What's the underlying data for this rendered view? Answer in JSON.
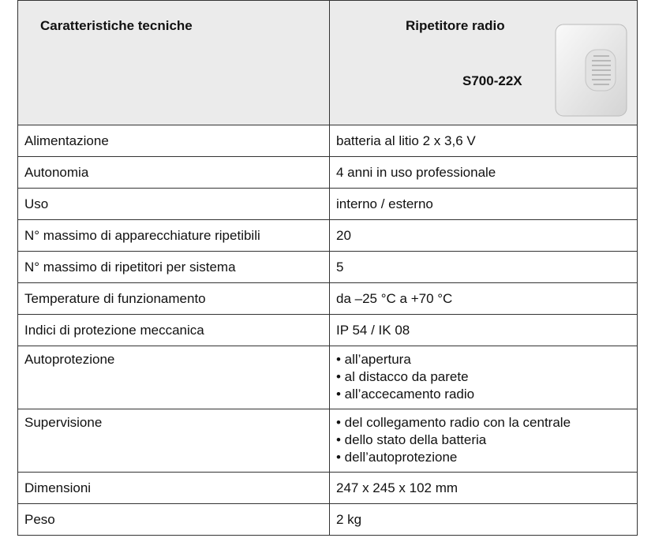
{
  "header": {
    "left": "Caratteristiche tecniche",
    "right_title": "Ripetitore radio",
    "model": "S700-22X"
  },
  "rows": [
    {
      "label": "Alimentazione",
      "value": [
        "batteria al litio 2 x 3,6 V"
      ]
    },
    {
      "label": "Autonomia",
      "value": [
        "4 anni in uso professionale"
      ]
    },
    {
      "label": "Uso",
      "value": [
        "interno / esterno"
      ]
    },
    {
      "label": "N° massimo di apparecchiature ripetibili",
      "value": [
        "20"
      ]
    },
    {
      "label": "N° massimo di ripetitori per sistema",
      "value": [
        "5"
      ]
    },
    {
      "label": "Temperature di funzionamento",
      "value": [
        "da –25 °C a +70 °C"
      ]
    },
    {
      "label": "Indici di protezione meccanica",
      "value": [
        "IP 54 / IK 08"
      ]
    },
    {
      "label": "Autoprotezione",
      "value": [
        "• all’apertura",
        "• al distacco da parete",
        "• all’accecamento radio"
      ]
    },
    {
      "label": "Supervisione",
      "value": [
        "• del collegamento radio con la centrale",
        "• dello stato della batteria",
        "• dell’autoprotezione"
      ]
    },
    {
      "label": "Dimensioni",
      "value": [
        "247 x 245 x 102 mm"
      ]
    },
    {
      "label": "Peso",
      "value": [
        "2 kg"
      ]
    }
  ]
}
